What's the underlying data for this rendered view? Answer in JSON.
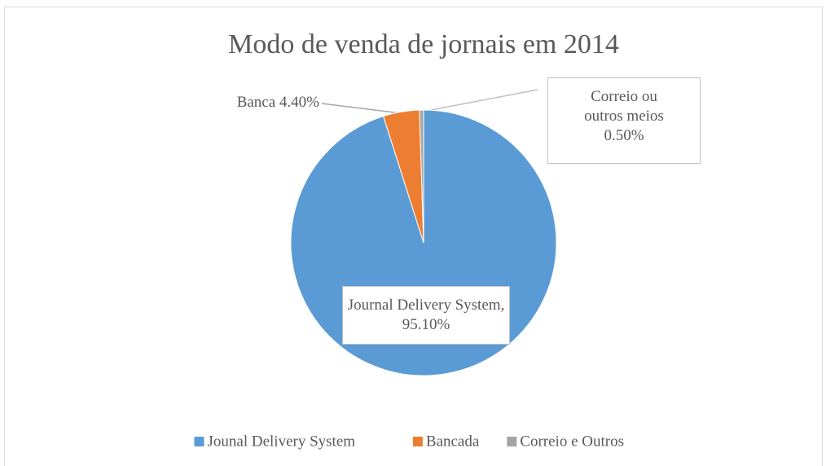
{
  "chart_data": {
    "type": "pie",
    "title": "Modo de venda de jornais em 2014",
    "categories": [
      "Jounal Delivery System",
      "Bancada",
      "Correio e Outros"
    ],
    "values": [
      95.1,
      4.4,
      0.5
    ],
    "value_labels": [
      "Journal Delivery System, 95.10%",
      "Banca 4.40%",
      "Correio ou outros meios 0.50%"
    ],
    "colors": [
      "#5b9bd5",
      "#ed7d31",
      "#a5a5a5"
    ],
    "legend": "bottom"
  }
}
